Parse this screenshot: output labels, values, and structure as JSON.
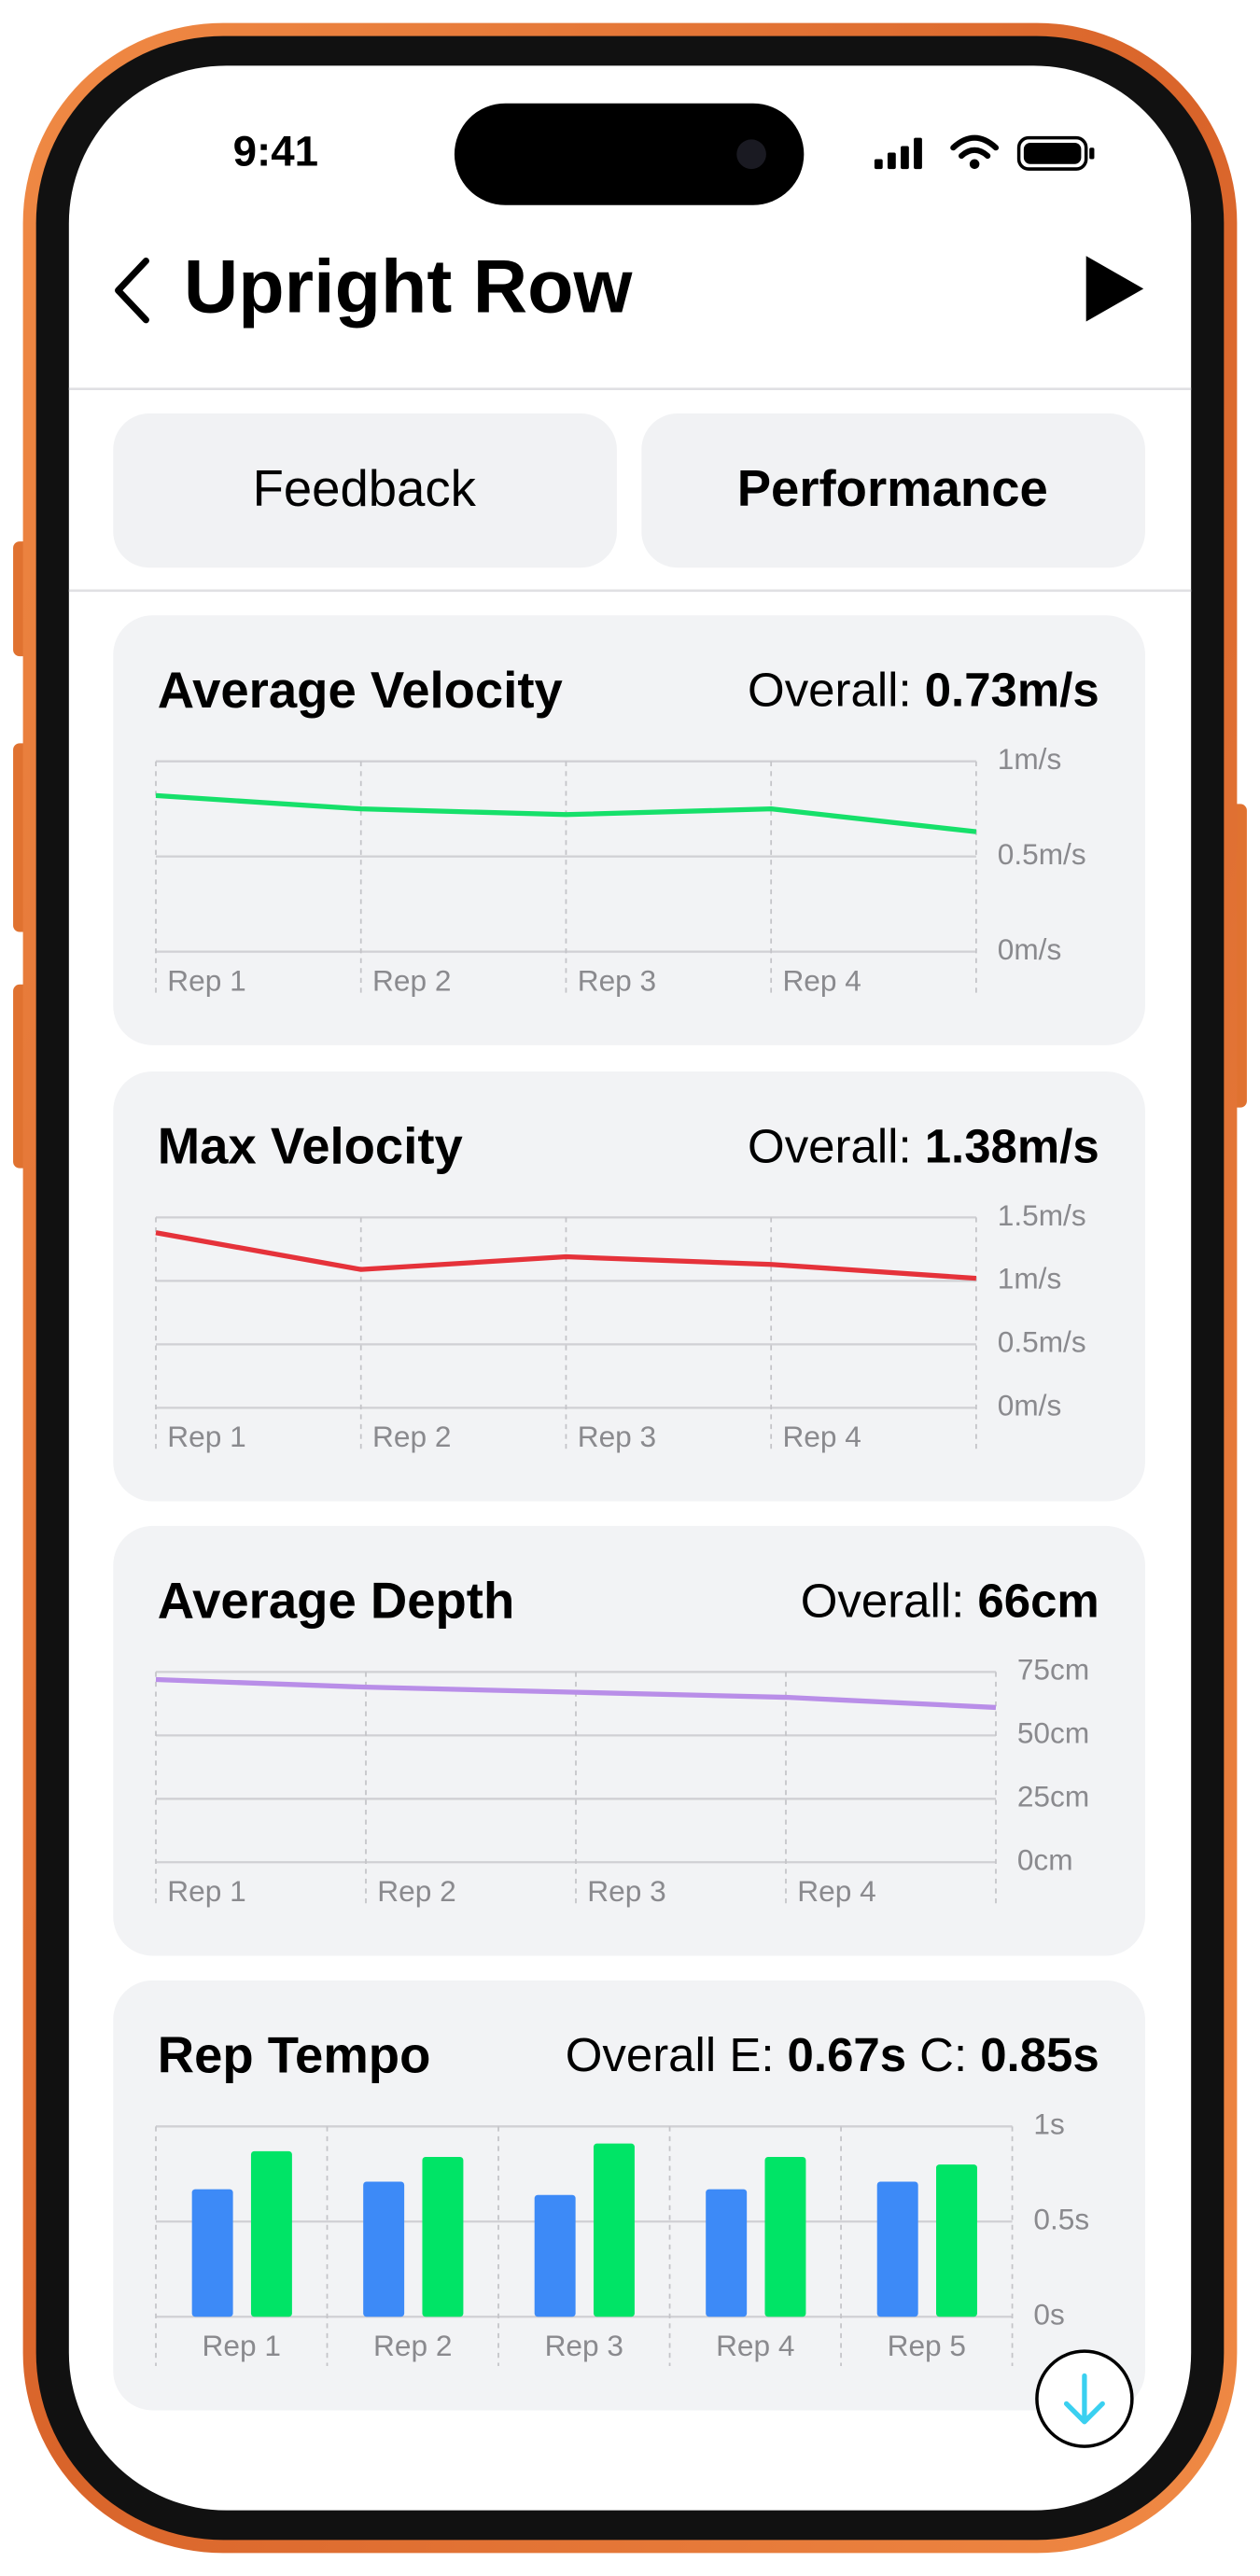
{
  "status_bar": {
    "time": "9:41"
  },
  "header": {
    "title": "Upright Row"
  },
  "tabs": [
    "Feedback",
    "Performance"
  ],
  "chart_data": [
    {
      "type": "line",
      "title": "Average Velocity",
      "overall_label": "Overall:",
      "overall_value": "0.73m/s",
      "categories": [
        "Rep 1",
        "Rep 2",
        "Rep 3",
        "Rep 4",
        null
      ],
      "series": [
        {
          "color": "#16e06a",
          "values": [
            0.82,
            0.75,
            0.72,
            0.75,
            0.63
          ]
        }
      ],
      "ylim": [
        0,
        1
      ],
      "yticks": [
        {
          "value": 0,
          "label": "0m/s"
        },
        {
          "value": 0.5,
          "label": "0.5m/s"
        },
        {
          "value": 1,
          "label": "1m/s"
        }
      ],
      "grid": true
    },
    {
      "type": "line",
      "title": "Max Velocity",
      "overall_label": "Overall:",
      "overall_value": "1.38m/s",
      "categories": [
        "Rep 1",
        "Rep 2",
        "Rep 3",
        "Rep 4",
        null
      ],
      "series": [
        {
          "color": "#e5323a",
          "values": [
            1.38,
            1.09,
            1.19,
            1.13,
            1.02
          ]
        }
      ],
      "ylim": [
        0,
        1.5
      ],
      "yticks": [
        {
          "value": 0,
          "label": "0m/s"
        },
        {
          "value": 0.5,
          "label": "0.5m/s"
        },
        {
          "value": 1,
          "label": "1m/s"
        },
        {
          "value": 1.5,
          "label": "1.5m/s"
        }
      ],
      "grid": true
    },
    {
      "type": "line",
      "title": "Average Depth",
      "overall_label": "Overall:",
      "overall_value": "66cm",
      "categories": [
        "Rep 1",
        "Rep 2",
        "Rep 3",
        "Rep 4",
        null
      ],
      "series": [
        {
          "color": "#b98ee8",
          "values": [
            72,
            69,
            67,
            65,
            61
          ]
        }
      ],
      "ylim": [
        0,
        75
      ],
      "yticks": [
        {
          "value": 0,
          "label": "0cm"
        },
        {
          "value": 25,
          "label": "25cm"
        },
        {
          "value": 50,
          "label": "50cm"
        },
        {
          "value": 75,
          "label": "75cm"
        }
      ],
      "grid": true
    },
    {
      "type": "bar",
      "title": "Rep Tempo",
      "overall_label": "Overall E:",
      "overall_value": "0.67s",
      "overall_label_2": "C:",
      "overall_value_2": "0.85s",
      "categories": [
        "Rep 1",
        "Rep 2",
        "Rep 3",
        "Rep 4",
        "Rep 5"
      ],
      "series": [
        {
          "color": "#3d8af7",
          "values": [
            0.67,
            0.71,
            0.64,
            0.67,
            0.71
          ]
        },
        {
          "color": "#00e466",
          "values": [
            0.87,
            0.84,
            0.91,
            0.84,
            0.8
          ]
        }
      ],
      "ylim": [
        0,
        1
      ],
      "yticks": [
        {
          "value": 0,
          "label": "0s"
        },
        {
          "value": 0.5,
          "label": "0.5s"
        },
        {
          "value": 1,
          "label": "1s"
        }
      ],
      "grid": true
    }
  ]
}
